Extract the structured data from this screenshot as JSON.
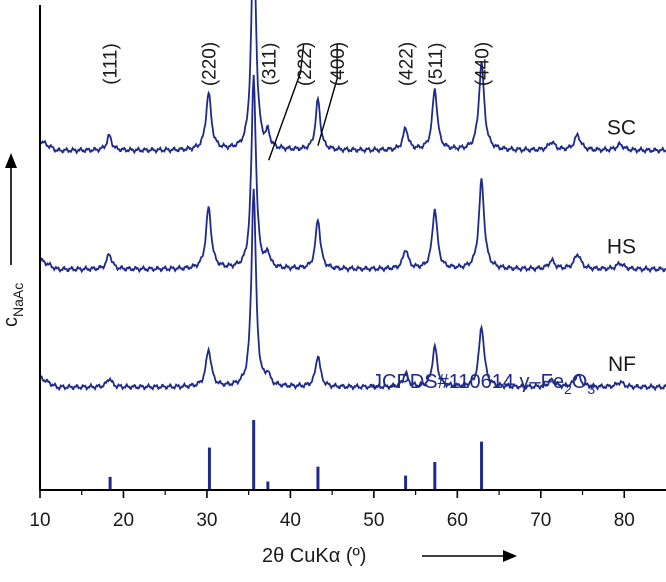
{
  "chart_data": {
    "type": "line",
    "xlabel": "2θ CuKα (º)",
    "ylabel_main": "c",
    "ylabel_sub": "NaAc",
    "xlim": [
      10,
      85
    ],
    "xticks": [
      "10",
      "20",
      "30",
      "40",
      "50",
      "60",
      "70",
      "80"
    ],
    "line_color": "#1f2a8a",
    "peak_labels": [
      {
        "text": "(111)",
        "x": 18.3
      },
      {
        "text": "(220)",
        "x": 30.2
      },
      {
        "text": "(311)",
        "x": 37.4
      },
      {
        "text": "(222)",
        "x": 41.6
      },
      {
        "text": "(400)",
        "x": 45.6
      },
      {
        "text": "(422)",
        "x": 53.8
      },
      {
        "text": "(511)",
        "x": 57.3
      },
      {
        "text": "(440)",
        "x": 62.9
      }
    ],
    "peaks": [
      {
        "hkl": "(111)",
        "x": 18.3
      },
      {
        "hkl": "(220)",
        "x": 30.2
      },
      {
        "hkl": "(311)",
        "x": 35.6
      },
      {
        "hkl": "(222)",
        "x": 37.3
      },
      {
        "hkl": "(400)",
        "x": 43.3
      },
      {
        "hkl": "(422)",
        "x": 53.8
      },
      {
        "hkl": "(511)",
        "x": 57.3
      },
      {
        "hkl": "(440)",
        "x": 62.9
      },
      {
        "hkl": "",
        "x": 71.3
      },
      {
        "hkl": "",
        "x": 74.4
      },
      {
        "hkl": "",
        "x": 79.5
      }
    ],
    "series": [
      {
        "name": "SC",
        "baseline": 0.7,
        "heights": [
          0.03,
          0.117,
          0.475,
          0.03,
          0.104,
          0.045,
          0.126,
          0.18,
          0.017,
          0.031,
          0.012
        ]
      },
      {
        "name": "HS",
        "baseline": 0.455,
        "heights": [
          0.032,
          0.126,
          0.4,
          0.028,
          0.103,
          0.04,
          0.124,
          0.183,
          0.017,
          0.031,
          0.012
        ]
      },
      {
        "name": "NF",
        "baseline": 0.212,
        "heights": [
          0.018,
          0.077,
          0.41,
          0.022,
          0.065,
          0.028,
          0.083,
          0.125,
          0.014,
          0.025,
          0.01
        ]
      }
    ],
    "reference": {
      "label_main": "JCPDS#110614  γ–Fe",
      "label_sub1": "2",
      "label_mid": "O",
      "label_sub2": "3",
      "lines": [
        {
          "x": 18.4,
          "h": 0.155
        },
        {
          "x": 30.3,
          "h": 0.5
        },
        {
          "x": 35.6,
          "h": 0.825
        },
        {
          "x": 37.3,
          "h": 0.1
        },
        {
          "x": 43.3,
          "h": 0.275
        },
        {
          "x": 53.8,
          "h": 0.17
        },
        {
          "x": 57.3,
          "h": 0.33
        },
        {
          "x": 62.9,
          "h": 0.57
        }
      ]
    }
  }
}
